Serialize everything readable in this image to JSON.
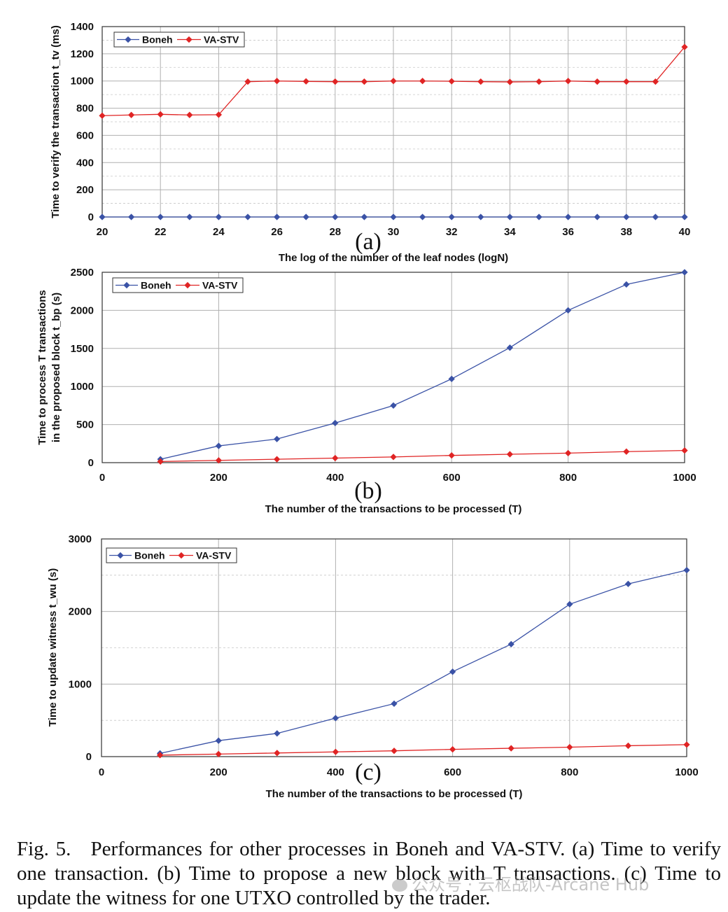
{
  "colors": {
    "boneh": "#3a52a6",
    "vastv": "#e02424",
    "grid": "#b0b0b0",
    "axis": "#333333"
  },
  "legend": {
    "series_a": "Boneh",
    "series_b": "VA-STV"
  },
  "chart_data": [
    {
      "type": "line",
      "panel_label": "(a)",
      "xlabel": "The log of the number of the leaf nodes (logN)",
      "ylabel": "Time to verify the transaction t_tv (ms)",
      "xlim": [
        20,
        40
      ],
      "ylim": [
        0,
        1400
      ],
      "xticks": [
        20,
        22,
        24,
        26,
        28,
        30,
        32,
        34,
        36,
        38,
        40
      ],
      "yticks": [
        0,
        200,
        400,
        600,
        800,
        1000,
        1200,
        1400
      ],
      "x": [
        20,
        21,
        22,
        23,
        24,
        25,
        26,
        27,
        28,
        29,
        30,
        31,
        32,
        33,
        34,
        35,
        36,
        37,
        38,
        39,
        40
      ],
      "series": [
        {
          "name": "Boneh",
          "values": [
            0,
            0,
            0,
            0,
            0,
            0,
            0,
            0,
            0,
            0,
            0,
            0,
            0,
            0,
            0,
            0,
            0,
            0,
            0,
            0,
            0
          ]
        },
        {
          "name": "VA-STV",
          "values": [
            745,
            750,
            755,
            750,
            752,
            995,
            1000,
            997,
            995,
            995,
            1000,
            1000,
            998,
            995,
            993,
            995,
            1000,
            995,
            995,
            995,
            1250
          ]
        }
      ]
    },
    {
      "type": "line",
      "panel_label": "(b)",
      "xlabel": "The number of the transactions to be processed (T)",
      "ylabel": "Time to process T transactions in the proposed block t_bp (s)",
      "xlim": [
        0,
        1000
      ],
      "ylim": [
        0,
        2500
      ],
      "xticks": [
        0,
        200,
        400,
        600,
        800,
        1000
      ],
      "yticks": [
        0,
        500,
        1000,
        1500,
        2000,
        2500
      ],
      "x": [
        100,
        200,
        300,
        400,
        500,
        600,
        700,
        800,
        900,
        1000
      ],
      "series": [
        {
          "name": "Boneh",
          "values": [
            45,
            220,
            310,
            520,
            750,
            1100,
            1510,
            2000,
            2340,
            2500
          ]
        },
        {
          "name": "VA-STV",
          "values": [
            15,
            30,
            45,
            60,
            75,
            95,
            110,
            125,
            145,
            160
          ]
        }
      ]
    },
    {
      "type": "line",
      "panel_label": "(c)",
      "xlabel": "The number of the transactions to be processed (T)",
      "ylabel": "Time to update witness t_wu (s)",
      "xlim": [
        0,
        1000
      ],
      "ylim": [
        0,
        3000
      ],
      "xticks": [
        0,
        200,
        400,
        600,
        800,
        1000
      ],
      "yticks": [
        0,
        1000,
        2000,
        3000
      ],
      "x": [
        100,
        200,
        300,
        400,
        500,
        600,
        700,
        800,
        900,
        1000
      ],
      "series": [
        {
          "name": "Boneh",
          "values": [
            45,
            220,
            320,
            530,
            730,
            1170,
            1550,
            2100,
            2380,
            2570
          ]
        },
        {
          "name": "VA-STV",
          "values": [
            20,
            35,
            50,
            65,
            80,
            100,
            115,
            130,
            150,
            165
          ]
        }
      ]
    }
  ],
  "caption": {
    "label": "Fig. 5.",
    "text": "Performances for other processes in Boneh and VA-STV. (a) Time to verify one transaction. (b) Time to propose a new block with T transactions. (c) Time to update the witness for one UTXO controlled by the trader."
  },
  "watermark": "公众号 · 云枢战队-Arcane Hub"
}
